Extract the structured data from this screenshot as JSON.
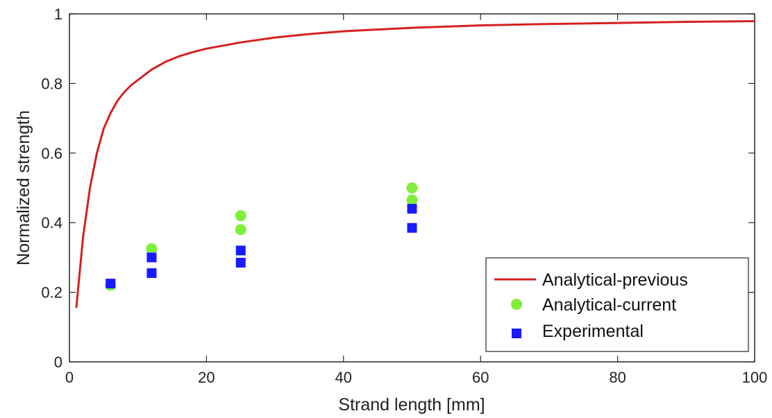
{
  "chart_data": {
    "type": "scatter",
    "title": "",
    "xlabel": "Strand length [mm]",
    "ylabel": "Normalized strength",
    "xlim": [
      0,
      100
    ],
    "ylim": [
      0,
      1
    ],
    "xticks": [
      "0",
      "20",
      "40",
      "60",
      "80",
      "100"
    ],
    "yticks": [
      "0",
      "0.2",
      "0.4",
      "0.6",
      "0.8",
      "1"
    ],
    "grid": false,
    "legend_position": "bottom-right",
    "series": [
      {
        "name": "Analytical-previous",
        "type": "line",
        "color": "#d42020",
        "x": [
          1,
          2,
          3,
          4,
          5,
          6,
          7,
          8,
          9,
          10,
          12,
          14,
          16,
          18,
          20,
          25,
          30,
          35,
          40,
          50,
          60,
          70,
          80,
          90,
          100
        ],
        "y": [
          0.155,
          0.36,
          0.5,
          0.6,
          0.67,
          0.715,
          0.75,
          0.775,
          0.795,
          0.81,
          0.84,
          0.862,
          0.878,
          0.89,
          0.9,
          0.918,
          0.932,
          0.942,
          0.95,
          0.96,
          0.967,
          0.971,
          0.974,
          0.977,
          0.979
        ]
      },
      {
        "name": "Analytical-current",
        "type": "scatter",
        "marker": "circle",
        "color": "#7fef3a",
        "x": [
          6,
          12,
          25,
          25,
          50,
          50
        ],
        "y": [
          0.22,
          0.325,
          0.42,
          0.38,
          0.5,
          0.465
        ]
      },
      {
        "name": "Experimental",
        "type": "scatter",
        "marker": "square",
        "color": "#1a1aff",
        "x": [
          6,
          12,
          12,
          25,
          25,
          50,
          50
        ],
        "y": [
          0.225,
          0.3,
          0.255,
          0.32,
          0.285,
          0.44,
          0.385
        ]
      }
    ]
  }
}
